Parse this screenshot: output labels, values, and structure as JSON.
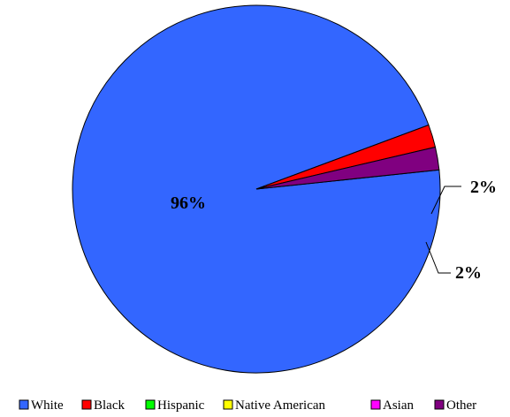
{
  "chart_data": {
    "type": "pie",
    "categories": [
      "White",
      "Black",
      "Hispanic",
      "Native American",
      "Asian",
      "Other"
    ],
    "values": [
      96,
      2,
      0,
      0,
      0,
      2
    ],
    "data_labels": [
      "96%",
      "2%",
      "",
      "",
      "",
      "2%"
    ],
    "colors": [
      "#3366ff",
      "#ff0000",
      "#00ff00",
      "#ffff00",
      "#ff00ff",
      "#800080"
    ],
    "legend_position": "bottom"
  }
}
